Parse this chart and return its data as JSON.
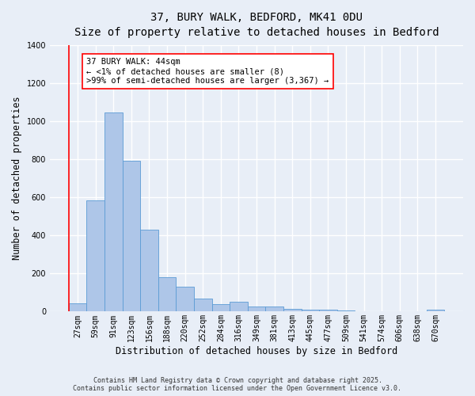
{
  "title1": "37, BURY WALK, BEDFORD, MK41 0DU",
  "title2": "Size of property relative to detached houses in Bedford",
  "xlabel": "Distribution of detached houses by size in Bedford",
  "ylabel": "Number of detached properties",
  "bin_labels": [
    "27sqm",
    "59sqm",
    "91sqm",
    "123sqm",
    "156sqm",
    "188sqm",
    "220sqm",
    "252sqm",
    "284sqm",
    "316sqm",
    "349sqm",
    "381sqm",
    "413sqm",
    "445sqm",
    "477sqm",
    "509sqm",
    "541sqm",
    "574sqm",
    "606sqm",
    "638sqm",
    "670sqm"
  ],
  "bar_values": [
    45,
    585,
    1045,
    790,
    430,
    180,
    130,
    70,
    40,
    50,
    25,
    25,
    15,
    8,
    8,
    5,
    0,
    0,
    0,
    0,
    10
  ],
  "bar_color": "#aec6e8",
  "bar_edge_color": "#5b9bd5",
  "background_color": "#e8eef7",
  "grid_color": "#ffffff",
  "vline_color": "red",
  "annotation_text": "37 BURY WALK: 44sqm\n← <1% of detached houses are smaller (8)\n>99% of semi-detached houses are larger (3,367) →",
  "annotation_box_color": "#ffffff",
  "annotation_box_edge": "red",
  "ylim": [
    0,
    1400
  ],
  "yticks": [
    0,
    200,
    400,
    600,
    800,
    1000,
    1200,
    1400
  ],
  "footer": "Contains HM Land Registry data © Crown copyright and database right 2025.\nContains public sector information licensed under the Open Government Licence v3.0.",
  "title_fontsize": 10,
  "subtitle_fontsize": 9,
  "tick_fontsize": 7,
  "xlabel_fontsize": 8.5,
  "ylabel_fontsize": 8.5,
  "annotation_fontsize": 7.5,
  "footer_fontsize": 6
}
